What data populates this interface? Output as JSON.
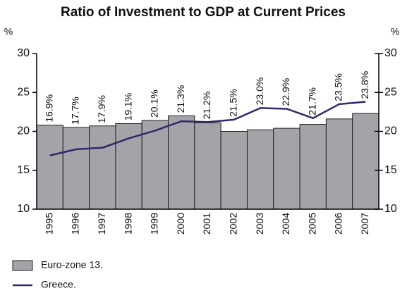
{
  "chart_data": {
    "type": "combo",
    "title": "Ratio of Investment to GDP at Current Prices",
    "y_unit": "%",
    "y2_unit": "%",
    "categories": [
      "1995",
      "1996",
      "1997",
      "1998",
      "1999",
      "2000",
      "2001",
      "2002",
      "2003",
      "2004",
      "2005",
      "2006",
      "2007"
    ],
    "series": [
      {
        "name": "Euro-zone 13.",
        "type": "bar",
        "color": "#a3a3a8",
        "values": [
          20.8,
          20.5,
          20.7,
          21.0,
          21.4,
          22.0,
          21.1,
          20.0,
          20.2,
          20.4,
          20.9,
          21.6,
          22.3
        ]
      },
      {
        "name": "Greece.",
        "type": "line",
        "color": "#2e2a6b",
        "values": [
          16.9,
          17.7,
          17.9,
          19.1,
          20.1,
          21.3,
          21.2,
          21.5,
          23.0,
          22.9,
          21.7,
          23.5,
          23.8
        ],
        "value_labels": [
          "16.9%",
          "17.7%",
          "17.9%",
          "19.1%",
          "20.1%",
          "21.3%",
          "21.2%",
          "21.5%",
          "23.0%",
          "22.9%",
          "21.7%",
          "23.5%",
          "23.8%"
        ]
      }
    ],
    "ylim": [
      10,
      30
    ],
    "yticks": [
      10,
      15,
      20,
      25,
      30
    ],
    "y2lim": [
      10,
      30
    ],
    "y2ticks": [
      10,
      15,
      20,
      25,
      30
    ]
  }
}
